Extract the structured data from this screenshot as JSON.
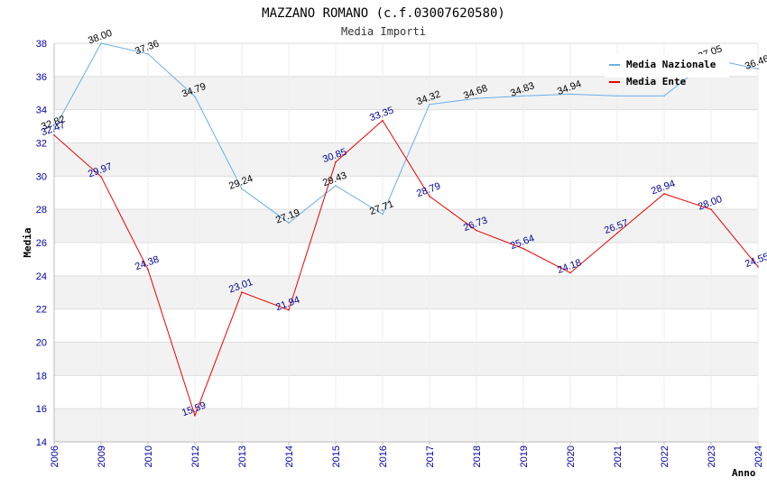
{
  "chart_data": {
    "type": "line",
    "title": "MAZZANO ROMANO (c.f.03007620580)",
    "subtitle": "Media Importi",
    "xlabel": "Anno",
    "ylabel": "Media",
    "categories": [
      "2006",
      "2009",
      "2010",
      "2012",
      "2013",
      "2014",
      "2015",
      "2016",
      "2017",
      "2018",
      "2019",
      "2020",
      "2021",
      "2022",
      "2023",
      "2024"
    ],
    "ylim": [
      14,
      38
    ],
    "yticks": [
      "14",
      "16",
      "18",
      "20",
      "22",
      "24",
      "26",
      "28",
      "30",
      "32",
      "34",
      "36",
      "38"
    ],
    "grid": true,
    "legend_position": "top-right",
    "series": [
      {
        "name": "Media Nazionale",
        "color": "#6aaee8",
        "label_color": "#000000",
        "values": [
          32.82,
          38.0,
          37.36,
          34.79,
          29.24,
          27.19,
          29.43,
          27.71,
          34.32,
          34.68,
          34.83,
          34.94,
          34.83,
          34.83,
          37.05,
          36.46
        ],
        "labels": [
          "32.82",
          "38.00",
          "37.36",
          "34.79",
          "29.24",
          "27.19",
          "29.43",
          "27.71",
          "34.32",
          "34.68",
          "34.83",
          "34.94",
          "",
          "",
          "37.05",
          "36.46"
        ]
      },
      {
        "name": "Media Ente",
        "color": "#ee0000",
        "label_color": "#000099",
        "values": [
          32.47,
          29.97,
          24.38,
          15.59,
          23.01,
          21.94,
          30.85,
          33.35,
          28.79,
          26.73,
          25.64,
          24.18,
          26.57,
          28.94,
          28.0,
          24.55
        ],
        "labels": [
          "32.47",
          "29.97",
          "24.38",
          "15.59",
          "23.01",
          "21.94",
          "30.85",
          "33.35",
          "28.79",
          "26.73",
          "25.64",
          "24.18",
          "26.57",
          "28.94",
          "28.00",
          "24.55"
        ]
      }
    ]
  }
}
